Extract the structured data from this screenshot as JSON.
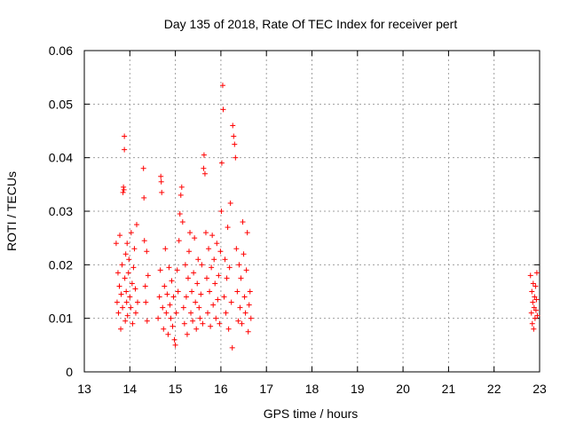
{
  "chart_data": {
    "type": "scatter",
    "title": "Day 135 of 2018, Rate Of TEC Index for receiver pert",
    "xlabel": "GPS time / hours",
    "ylabel": "ROTI / TECUs",
    "xlim": [
      13,
      23
    ],
    "ylim": [
      0,
      0.06
    ],
    "x_ticks": [
      "13",
      "14",
      "15",
      "16",
      "17",
      "18",
      "19",
      "20",
      "21",
      "22",
      "23"
    ],
    "y_ticks": [
      "0",
      "0.01",
      "0.02",
      "0.03",
      "0.04",
      "0.05",
      "0.06"
    ],
    "grid": true,
    "marker": "+",
    "color": "#ff0000",
    "series": [
      {
        "name": "pert",
        "points": [
          [
            13.7,
            0.024
          ],
          [
            13.72,
            0.013
          ],
          [
            13.74,
            0.0185
          ],
          [
            13.75,
            0.011
          ],
          [
            13.77,
            0.016
          ],
          [
            13.78,
            0.0255
          ],
          [
            13.8,
            0.008
          ],
          [
            13.81,
            0.0145
          ],
          [
            13.83,
            0.02
          ],
          [
            13.84,
            0.012
          ],
          [
            13.85,
            0.0335
          ],
          [
            13.86,
            0.0345
          ],
          [
            13.87,
            0.034
          ],
          [
            13.88,
            0.044
          ],
          [
            13.88,
            0.0415
          ],
          [
            13.89,
            0.0175
          ],
          [
            13.9,
            0.0095
          ],
          [
            13.91,
            0.022
          ],
          [
            13.92,
            0.015
          ],
          [
            13.93,
            0.013
          ],
          [
            13.94,
            0.024
          ],
          [
            13.95,
            0.0105
          ],
          [
            13.97,
            0.0185
          ],
          [
            13.98,
            0.021
          ],
          [
            14.0,
            0.014
          ],
          [
            14.02,
            0.012
          ],
          [
            14.03,
            0.026
          ],
          [
            14.05,
            0.0165
          ],
          [
            14.06,
            0.009
          ],
          [
            14.08,
            0.0195
          ],
          [
            14.1,
            0.023
          ],
          [
            14.12,
            0.0155
          ],
          [
            14.13,
            0.011
          ],
          [
            14.15,
            0.0275
          ],
          [
            14.17,
            0.013
          ],
          [
            14.3,
            0.038
          ],
          [
            14.31,
            0.0325
          ],
          [
            14.32,
            0.0245
          ],
          [
            14.34,
            0.016
          ],
          [
            14.35,
            0.013
          ],
          [
            14.37,
            0.0225
          ],
          [
            14.38,
            0.0095
          ],
          [
            14.4,
            0.018
          ],
          [
            14.62,
            0.01
          ],
          [
            14.65,
            0.014
          ],
          [
            14.67,
            0.019
          ],
          [
            14.68,
            0.0365
          ],
          [
            14.69,
            0.0355
          ],
          [
            14.7,
            0.0335
          ],
          [
            14.72,
            0.012
          ],
          [
            14.74,
            0.008
          ],
          [
            14.76,
            0.016
          ],
          [
            14.78,
            0.023
          ],
          [
            14.8,
            0.011
          ],
          [
            14.82,
            0.0145
          ],
          [
            14.84,
            0.007
          ],
          [
            14.86,
            0.0195
          ],
          [
            14.88,
            0.0125
          ],
          [
            14.9,
            0.01
          ],
          [
            14.92,
            0.017
          ],
          [
            14.94,
            0.0085
          ],
          [
            14.96,
            0.014
          ],
          [
            14.98,
            0.006
          ],
          [
            15.0,
            0.005
          ],
          [
            15.02,
            0.011
          ],
          [
            15.04,
            0.019
          ],
          [
            15.06,
            0.015
          ],
          [
            15.08,
            0.0245
          ],
          [
            15.1,
            0.0295
          ],
          [
            15.12,
            0.033
          ],
          [
            15.14,
            0.0345
          ],
          [
            15.16,
            0.028
          ],
          [
            15.18,
            0.012
          ],
          [
            15.2,
            0.009
          ],
          [
            15.22,
            0.02
          ],
          [
            15.24,
            0.014
          ],
          [
            15.26,
            0.007
          ],
          [
            15.28,
            0.0175
          ],
          [
            15.3,
            0.0225
          ],
          [
            15.32,
            0.026
          ],
          [
            15.34,
            0.011
          ],
          [
            15.36,
            0.015
          ],
          [
            15.38,
            0.0095
          ],
          [
            15.4,
            0.0185
          ],
          [
            15.42,
            0.025
          ],
          [
            15.44,
            0.013
          ],
          [
            15.46,
            0.008
          ],
          [
            15.48,
            0.0165
          ],
          [
            15.5,
            0.021
          ],
          [
            15.52,
            0.012
          ],
          [
            15.54,
            0.01
          ],
          [
            15.56,
            0.0145
          ],
          [
            15.58,
            0.02
          ],
          [
            15.6,
            0.009
          ],
          [
            15.62,
            0.038
          ],
          [
            15.63,
            0.0405
          ],
          [
            15.65,
            0.037
          ],
          [
            15.67,
            0.026
          ],
          [
            15.69,
            0.0175
          ],
          [
            15.71,
            0.011
          ],
          [
            15.73,
            0.023
          ],
          [
            15.75,
            0.015
          ],
          [
            15.77,
            0.0085
          ],
          [
            15.79,
            0.0195
          ],
          [
            15.81,
            0.0255
          ],
          [
            15.83,
            0.0125
          ],
          [
            15.85,
            0.021
          ],
          [
            15.87,
            0.0165
          ],
          [
            15.89,
            0.01
          ],
          [
            15.91,
            0.024
          ],
          [
            15.93,
            0.0135
          ],
          [
            15.95,
            0.018
          ],
          [
            15.97,
            0.009
          ],
          [
            15.99,
            0.0225
          ],
          [
            16.01,
            0.03
          ],
          [
            16.02,
            0.039
          ],
          [
            16.04,
            0.0535
          ],
          [
            16.05,
            0.049
          ],
          [
            16.07,
            0.014
          ],
          [
            16.09,
            0.021
          ],
          [
            16.11,
            0.011
          ],
          [
            16.13,
            0.0175
          ],
          [
            16.15,
            0.027
          ],
          [
            16.17,
            0.008
          ],
          [
            16.19,
            0.0195
          ],
          [
            16.21,
            0.0315
          ],
          [
            16.23,
            0.013
          ],
          [
            16.25,
            0.0045
          ],
          [
            16.26,
            0.046
          ],
          [
            16.28,
            0.044
          ],
          [
            16.3,
            0.0425
          ],
          [
            16.32,
            0.04
          ],
          [
            16.34,
            0.023
          ],
          [
            16.36,
            0.015
          ],
          [
            16.38,
            0.0095
          ],
          [
            16.4,
            0.02
          ],
          [
            16.42,
            0.012
          ],
          [
            16.44,
            0.0175
          ],
          [
            16.46,
            0.009
          ],
          [
            16.48,
            0.028
          ],
          [
            16.5,
            0.022
          ],
          [
            16.52,
            0.014
          ],
          [
            16.54,
            0.011
          ],
          [
            16.56,
            0.019
          ],
          [
            16.58,
            0.026
          ],
          [
            16.6,
            0.0075
          ],
          [
            16.62,
            0.0125
          ],
          [
            16.64,
            0.015
          ],
          [
            16.66,
            0.01
          ],
          [
            22.8,
            0.018
          ],
          [
            22.82,
            0.011
          ],
          [
            22.83,
            0.015
          ],
          [
            22.84,
            0.009
          ],
          [
            22.85,
            0.013
          ],
          [
            22.86,
            0.0165
          ],
          [
            22.87,
            0.008
          ],
          [
            22.88,
            0.012
          ],
          [
            22.89,
            0.014
          ],
          [
            22.9,
            0.01
          ],
          [
            22.91,
            0.016
          ],
          [
            22.92,
            0.0115
          ],
          [
            22.93,
            0.0135
          ],
          [
            22.94,
            0.0185
          ],
          [
            22.95,
            0.0105
          ]
        ]
      }
    ]
  }
}
